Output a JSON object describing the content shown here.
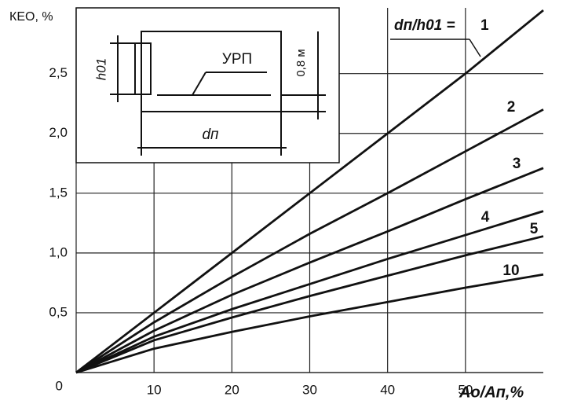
{
  "chart_data": {
    "type": "line",
    "y_label": "КЕО, %",
    "x_label": "Aо/Aп,%",
    "legend_title": "dп/h01 =",
    "x": [
      0,
      10,
      20,
      30,
      40,
      50,
      60
    ],
    "series": [
      {
        "name": "1",
        "color": "#111111",
        "values": [
          0,
          0.5,
          1.0,
          1.5,
          2.0,
          2.5,
          3.03
        ]
      },
      {
        "name": "2",
        "color": "#111111",
        "values": [
          0,
          0.42,
          0.8,
          1.16,
          1.5,
          1.85,
          2.2
        ]
      },
      {
        "name": "3",
        "color": "#111111",
        "values": [
          0,
          0.35,
          0.65,
          0.92,
          1.18,
          1.45,
          1.71
        ]
      },
      {
        "name": "4",
        "color": "#111111",
        "values": [
          0,
          0.3,
          0.53,
          0.74,
          0.95,
          1.15,
          1.35
        ]
      },
      {
        "name": "5",
        "color": "#111111",
        "values": [
          0,
          0.27,
          0.46,
          0.64,
          0.81,
          0.98,
          1.14
        ]
      },
      {
        "name": "10",
        "color": "#111111",
        "values": [
          0,
          0.2,
          0.34,
          0.47,
          0.59,
          0.71,
          0.82
        ]
      }
    ],
    "xlim": [
      0,
      60
    ],
    "ylim": [
      0,
      3.05
    ],
    "xticks": [
      10,
      20,
      30,
      40,
      50
    ],
    "yticks": [
      0,
      {
        "value": 0.5,
        "label": "0,5"
      },
      {
        "value": 1,
        "label": "1,0"
      },
      {
        "value": 1.5,
        "label": "1,5"
      },
      {
        "value": 2,
        "label": "2,0"
      },
      {
        "value": 2.5,
        "label": "2,5"
      }
    ],
    "grid": true
  },
  "inset": {
    "labels": [
      "УРП",
      "0,8 м",
      "dп",
      "h01"
    ]
  }
}
